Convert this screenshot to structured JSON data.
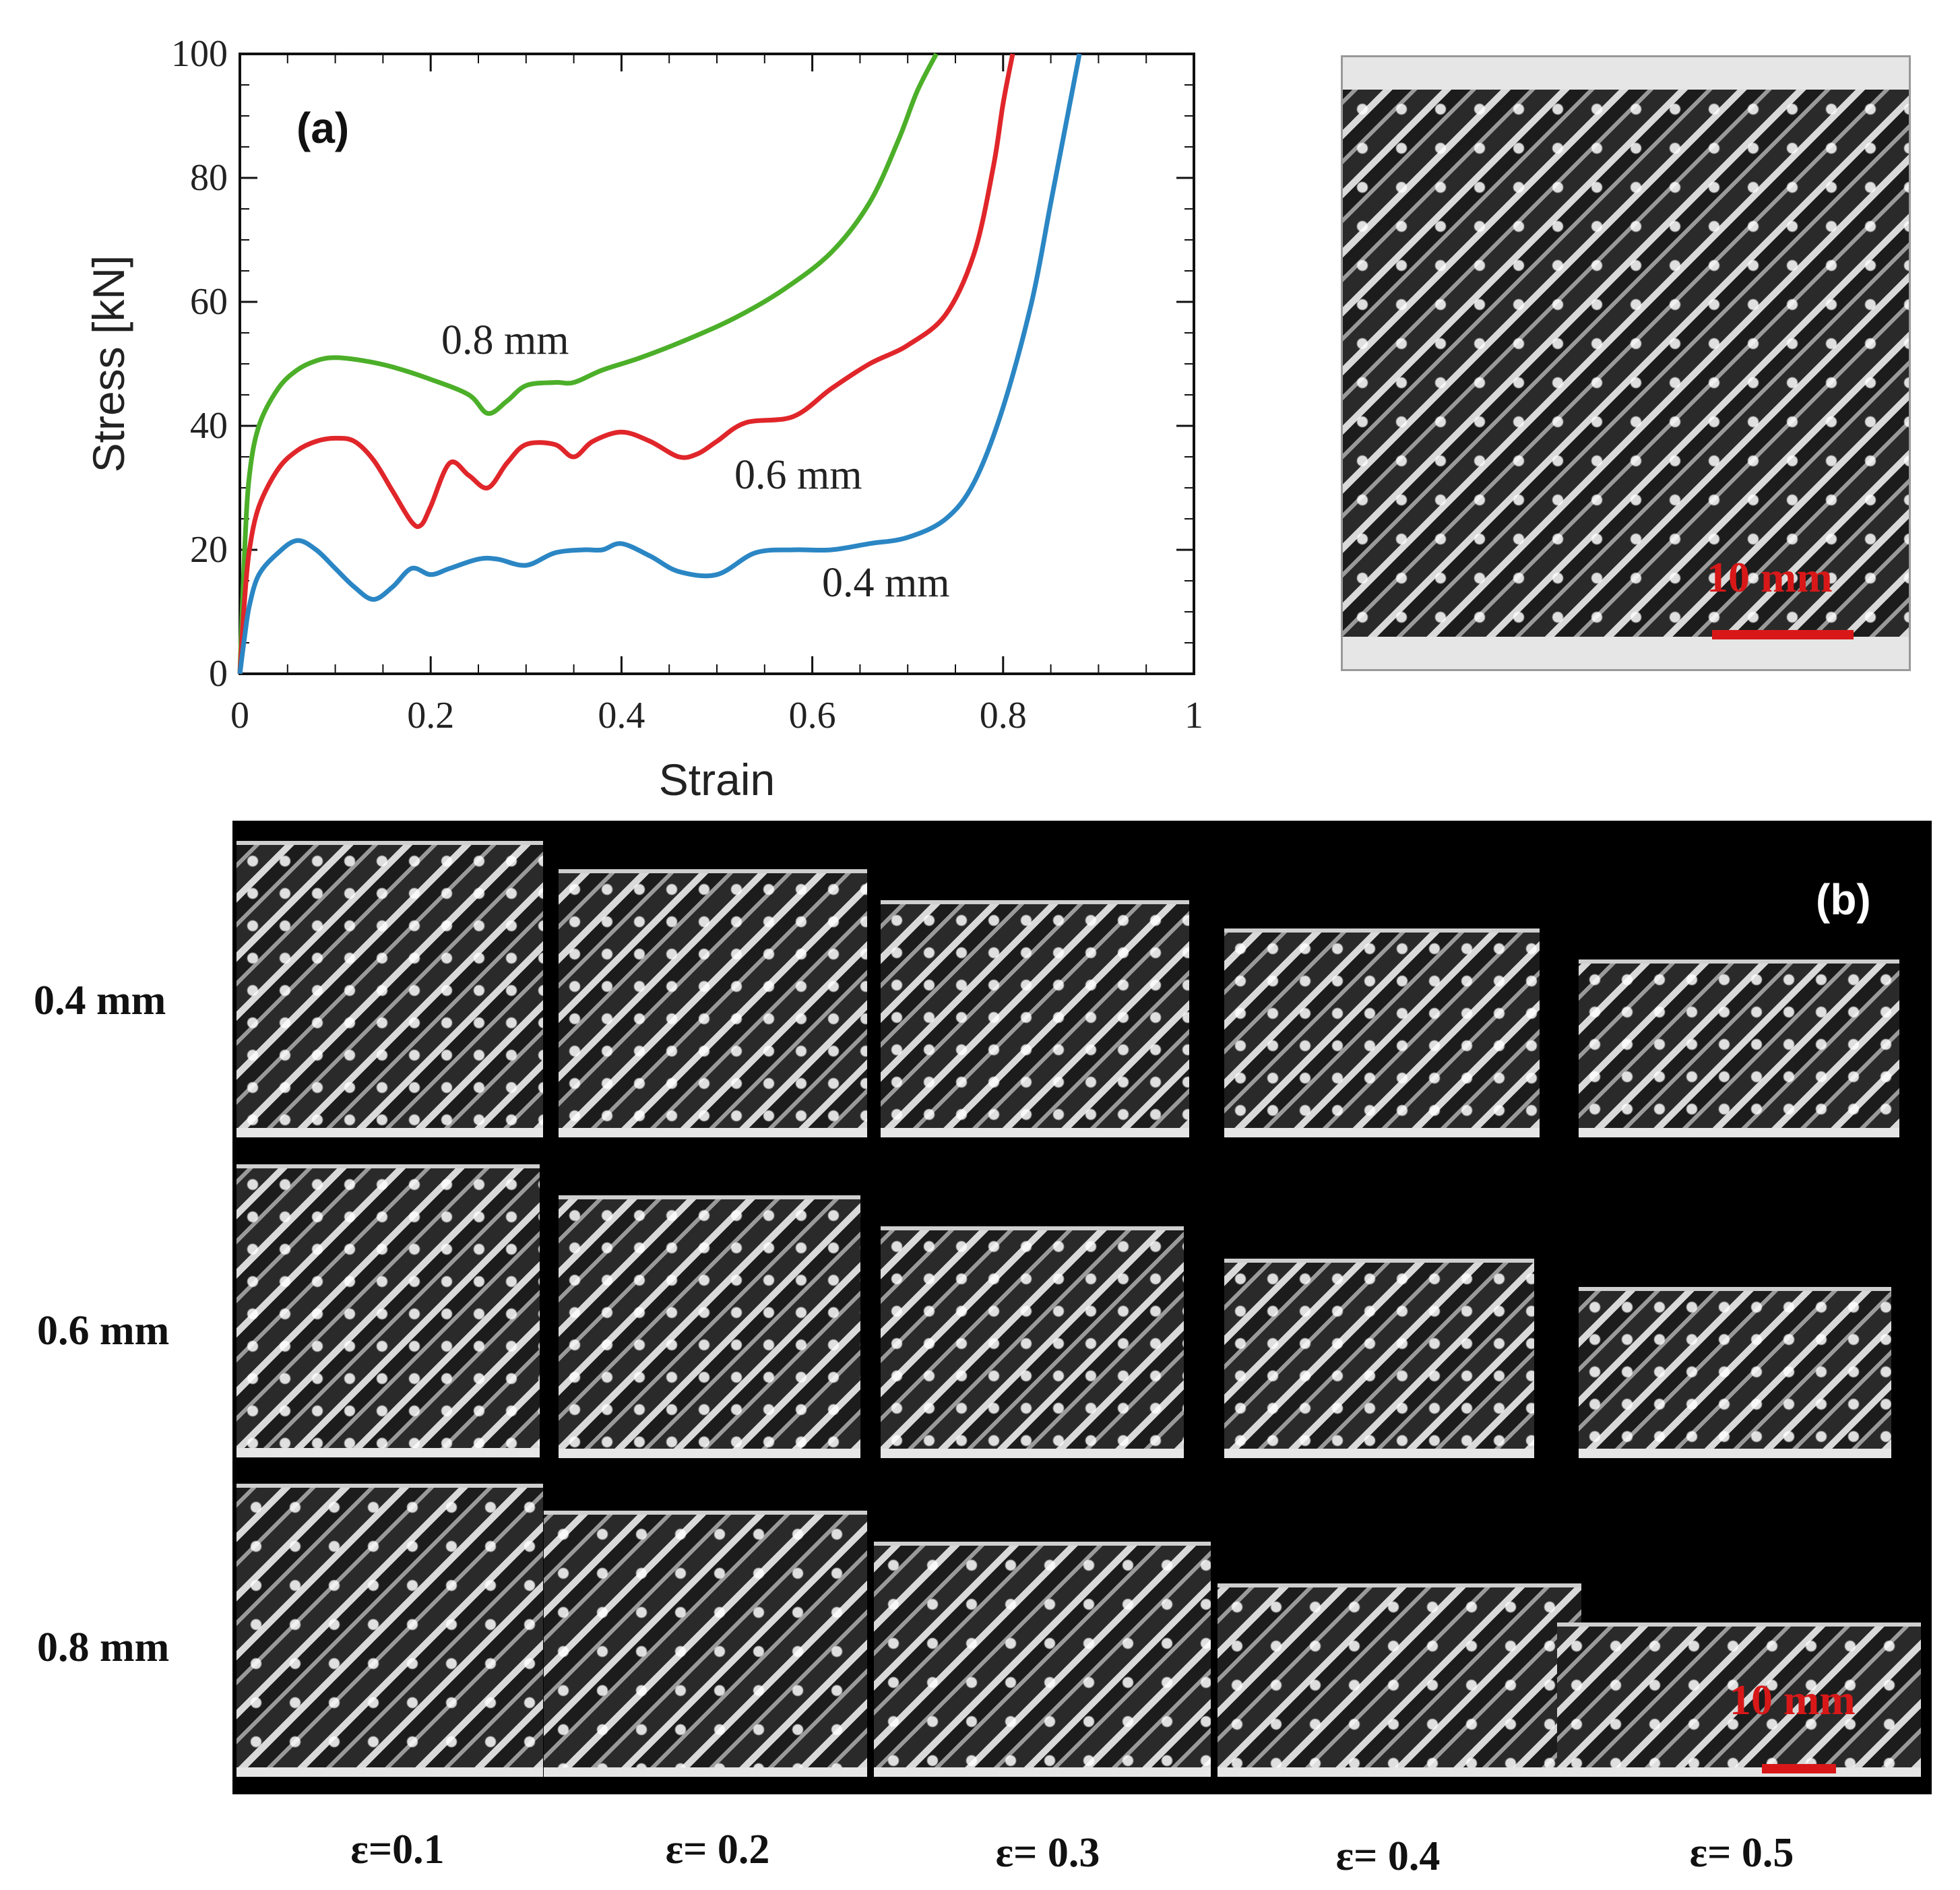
{
  "chart_data": {
    "type": "line",
    "panel_label": "(a)",
    "xlabel": "Strain",
    "ylabel": "Stress [kN]",
    "xlim": [
      0,
      1
    ],
    "ylim": [
      0,
      100
    ],
    "x_ticks": [
      "0",
      "0.2",
      "0.4",
      "0.6",
      "0.8",
      "1"
    ],
    "y_ticks": [
      "0",
      "20",
      "40",
      "60",
      "80",
      "100"
    ],
    "series": [
      {
        "name": "0.8 mm",
        "color": "#4caf29",
        "x": [
          0,
          0.005,
          0.01,
          0.02,
          0.04,
          0.06,
          0.08,
          0.1,
          0.13,
          0.16,
          0.2,
          0.24,
          0.26,
          0.28,
          0.3,
          0.33,
          0.35,
          0.38,
          0.42,
          0.47,
          0.52,
          0.57,
          0.62,
          0.66,
          0.69,
          0.71,
          0.73
        ],
        "y": [
          0,
          20,
          32,
          40,
          46,
          49,
          50.5,
          51,
          50.5,
          49.5,
          47.5,
          45,
          42,
          44,
          46.5,
          47,
          47,
          49,
          51,
          54,
          57.5,
          62,
          68,
          76,
          86,
          94,
          100
        ]
      },
      {
        "name": "0.6 mm",
        "color": "#e0262a",
        "x": [
          0,
          0.005,
          0.01,
          0.02,
          0.04,
          0.06,
          0.08,
          0.1,
          0.12,
          0.14,
          0.16,
          0.18,
          0.19,
          0.2,
          0.22,
          0.24,
          0.26,
          0.28,
          0.3,
          0.33,
          0.35,
          0.37,
          0.4,
          0.43,
          0.46,
          0.48,
          0.5,
          0.53,
          0.58,
          0.62,
          0.66,
          0.7,
          0.74,
          0.77,
          0.79,
          0.8,
          0.81
        ],
        "y": [
          0,
          12,
          20,
          27,
          33,
          36,
          37.5,
          38,
          37.5,
          34.5,
          29.5,
          24.5,
          24,
          27,
          34,
          32,
          30,
          34,
          37,
          37,
          35,
          37.5,
          39,
          37.5,
          35,
          35.5,
          37.5,
          40.5,
          41.5,
          46,
          50,
          53,
          58,
          68,
          82,
          92,
          100
        ]
      },
      {
        "name": "0.4 mm",
        "color": "#2b86c4",
        "x": [
          0,
          0.005,
          0.01,
          0.02,
          0.04,
          0.06,
          0.08,
          0.1,
          0.12,
          0.14,
          0.16,
          0.18,
          0.2,
          0.22,
          0.25,
          0.27,
          0.3,
          0.33,
          0.36,
          0.38,
          0.4,
          0.43,
          0.46,
          0.5,
          0.54,
          0.58,
          0.62,
          0.66,
          0.7,
          0.74,
          0.77,
          0.8,
          0.83,
          0.85,
          0.87,
          0.88
        ],
        "y": [
          0,
          6,
          11,
          16,
          19.5,
          21.5,
          20,
          17,
          14,
          12,
          14,
          17,
          16,
          17,
          18.5,
          18.5,
          17.5,
          19.5,
          20,
          20,
          21,
          19,
          16.5,
          16,
          19.5,
          20,
          20,
          21,
          22,
          25,
          31,
          43,
          60,
          76,
          92,
          100
        ]
      }
    ],
    "annotations": [
      "0.8 mm",
      "0.6 mm",
      "0.4 mm"
    ]
  },
  "top_photo": {
    "scale_label": "10 mm",
    "scale_color": "#d81818"
  },
  "panel_b": {
    "label": "(b)",
    "rows": [
      "0.4 mm",
      "0.6 mm",
      "0.8 mm"
    ],
    "columns": [
      "ε=0.1",
      "ε= 0.2",
      "ε= 0.3",
      "ε= 0.4",
      "ε= 0.5"
    ],
    "scale_label": "10 mm"
  }
}
